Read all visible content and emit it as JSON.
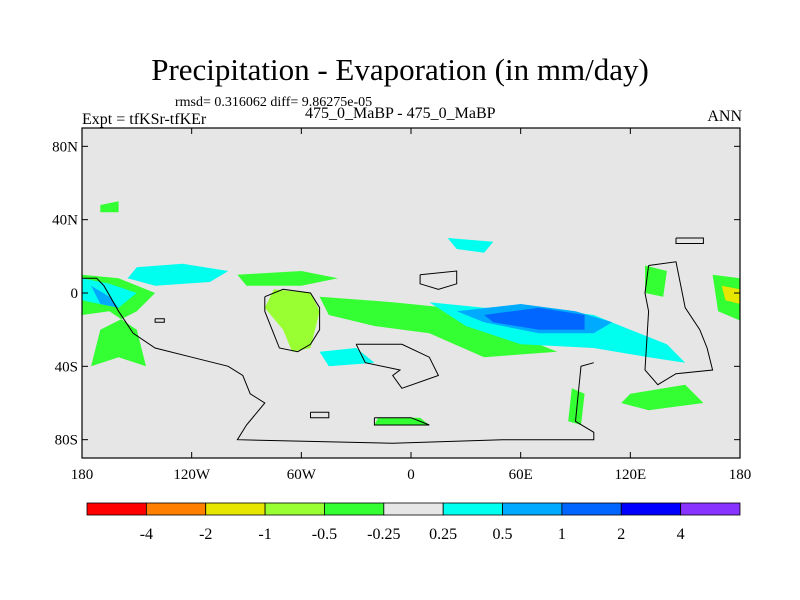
{
  "title": "Precipitation - Evaporation (in mm/day)",
  "stats": "rmsd= 0.316062 diff= 9.86275e-05",
  "expt": "Expt = tfKSr-tfKEr",
  "case": "475_0_MaBP - 475_0_MaBP",
  "season": "ANN",
  "chart_data": {
    "type": "heatmap",
    "title": "Precipitation - Evaporation (in mm/day)",
    "x_range": [
      -180,
      180
    ],
    "y_range": [
      -90,
      90
    ],
    "x_tick_labels": [
      "180",
      "120W",
      "60W",
      "0",
      "60E",
      "120E",
      "180"
    ],
    "y_tick_labels": [
      "80N",
      "40N",
      "0",
      "40S",
      "80S"
    ],
    "colorbar": {
      "levels": [
        "-4",
        "-2",
        "-1",
        "-0.5",
        "-0.25",
        "0.25",
        "0.5",
        "1",
        "2",
        "4"
      ],
      "colors": [
        "#ff0000",
        "#ff8000",
        "#e6e600",
        "#99ff33",
        "#33ff33",
        "#e6e6e6",
        "#00ffee",
        "#00aaff",
        "#0066ff",
        "#0000ff",
        "#8833ff"
      ]
    }
  }
}
